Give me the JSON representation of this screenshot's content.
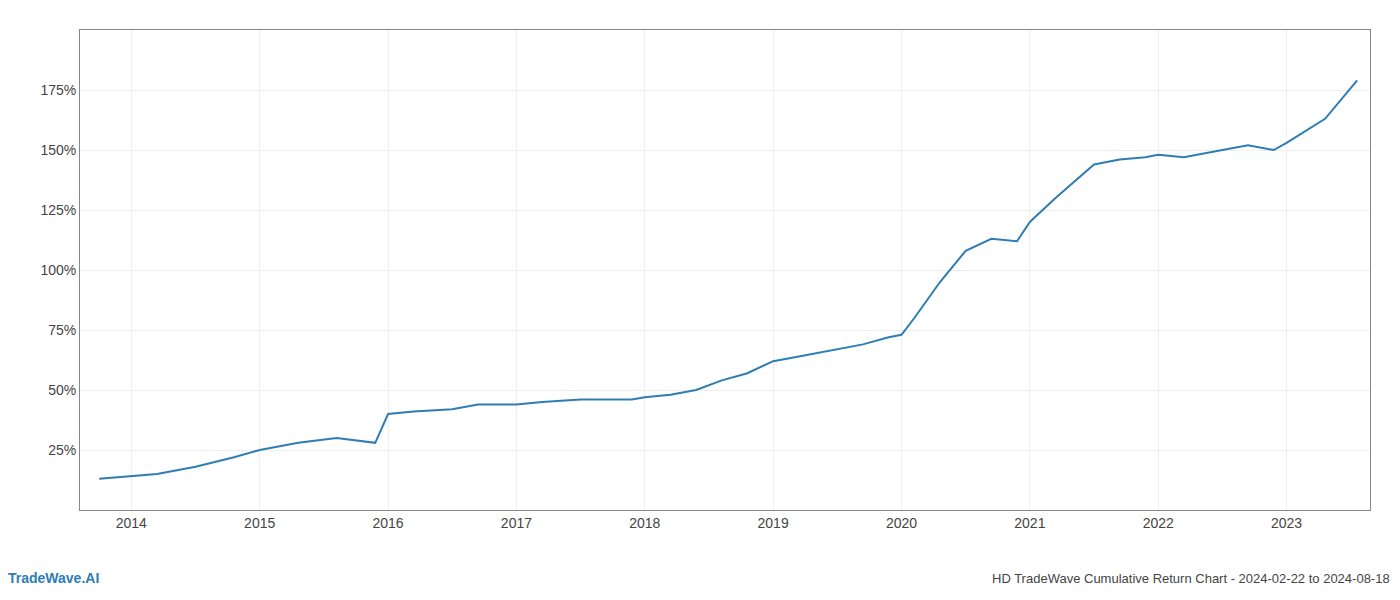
{
  "chart_data": {
    "type": "line",
    "title": "HD TradeWave Cumulative Return Chart - 2024-02-22 to 2024-08-18",
    "annotations": [
      "TradeWave.AI"
    ],
    "x": [
      2013.75,
      2014.0,
      2014.2,
      2014.5,
      2014.8,
      2015.0,
      2015.3,
      2015.6,
      2015.9,
      2016.0,
      2016.2,
      2016.5,
      2016.7,
      2016.9,
      2017.0,
      2017.2,
      2017.5,
      2017.7,
      2017.9,
      2018.0,
      2018.2,
      2018.4,
      2018.6,
      2018.8,
      2019.0,
      2019.2,
      2019.5,
      2019.7,
      2019.9,
      2020.0,
      2020.1,
      2020.3,
      2020.5,
      2020.7,
      2020.9,
      2021.0,
      2021.2,
      2021.5,
      2021.7,
      2021.9,
      2022.0,
      2022.2,
      2022.5,
      2022.7,
      2022.9,
      2023.0,
      2023.3,
      2023.55
    ],
    "values": [
      13,
      14,
      15,
      18,
      22,
      25,
      28,
      30,
      28,
      40,
      41,
      42,
      44,
      44,
      44,
      45,
      46,
      46,
      46,
      47,
      48,
      50,
      54,
      57,
      62,
      64,
      67,
      69,
      72,
      73,
      80,
      95,
      108,
      113,
      112,
      120,
      130,
      144,
      146,
      147,
      148,
      147,
      150,
      152,
      150,
      153,
      163,
      179
    ],
    "color": "#2e7db5",
    "xlim": [
      2013.6,
      2023.65
    ],
    "xticks": [
      2014,
      2015,
      2016,
      2017,
      2018,
      2019,
      2020,
      2021,
      2022,
      2023
    ],
    "ylim": [
      0,
      200
    ],
    "yticks": [
      {
        "value": 25,
        "label": "25%"
      },
      {
        "value": 50,
        "label": "50%"
      },
      {
        "value": 75,
        "label": "75%"
      },
      {
        "value": 100,
        "label": "100%"
      },
      {
        "value": 125,
        "label": "125%"
      },
      {
        "value": 150,
        "label": "150%"
      },
      {
        "value": 175,
        "label": "175%"
      }
    ],
    "grid": true
  }
}
